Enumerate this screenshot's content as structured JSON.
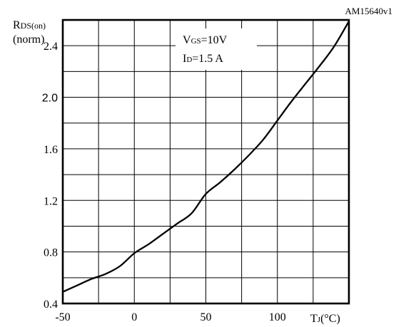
{
  "figure_id": "AM15640v1",
  "chart_data": {
    "type": "line",
    "ylabel_main": "R",
    "ylabel_sub": "DS(on)",
    "ylabel_unit": "(norm)",
    "xlabel_main": "T",
    "xlabel_sub": "J",
    "xlabel_unit": "(°C)",
    "annotation_line1_main": "V",
    "annotation_line1_sub": "GS",
    "annotation_line1_value": "=10V",
    "annotation_line2_main": "I",
    "annotation_line2_sub": "D",
    "annotation_line2_value": "=1.5 A",
    "xlim": [
      -50,
      150
    ],
    "ylim": [
      0.4,
      2.6
    ],
    "x_ticks": [
      {
        "value": -50,
        "label": "-50"
      },
      {
        "value": 0,
        "label": "0"
      },
      {
        "value": 50,
        "label": "50"
      },
      {
        "value": 100,
        "label": "100"
      }
    ],
    "y_ticks": [
      {
        "value": 0.4,
        "label": "0.4"
      },
      {
        "value": 0.8,
        "label": "0.8"
      },
      {
        "value": 1.2,
        "label": "1.2"
      },
      {
        "value": 1.6,
        "label": "1.6"
      },
      {
        "value": 2.0,
        "label": "2.0"
      },
      {
        "value": 2.4,
        "label": "2.4"
      }
    ],
    "grid": true,
    "series": [
      {
        "x": [
          -50,
          -40,
          -30,
          -20,
          -10,
          0,
          10,
          20,
          30,
          40,
          50,
          60,
          70,
          80,
          90,
          100,
          110,
          120,
          130,
          140,
          150
        ],
        "y": [
          0.49,
          0.54,
          0.59,
          0.63,
          0.69,
          0.79,
          0.86,
          0.94,
          1.02,
          1.1,
          1.25,
          1.34,
          1.44,
          1.55,
          1.67,
          1.82,
          1.97,
          2.11,
          2.25,
          2.4,
          2.59
        ]
      }
    ]
  }
}
